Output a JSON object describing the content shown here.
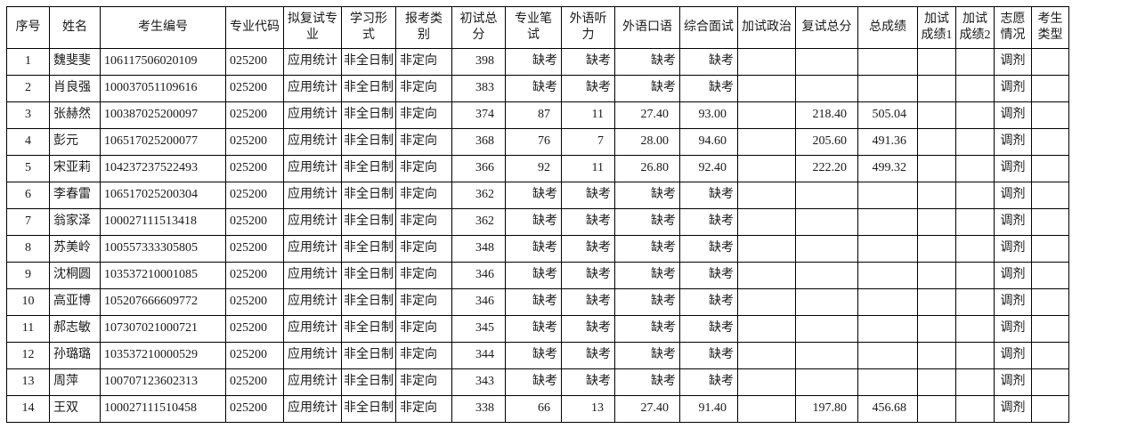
{
  "table": {
    "headers": [
      "序号",
      "姓名",
      "考生编号",
      "专业代码",
      "拟复试专\n业",
      "学习形\n式",
      "报考类\n别",
      "初试总\n分",
      "专业笔\n试",
      "外语听\n力",
      "外语口语",
      "综合面试",
      "加试政治",
      "复试总分",
      "总成绩",
      "加试\n成绩1",
      "加试\n成绩2",
      "志愿\n情况",
      "考生\n类型"
    ],
    "rows": [
      [
        "1",
        "魏斐斐",
        "106117506020109",
        "025200",
        "应用统计",
        "非全日制",
        "非定向",
        "398",
        "缺考",
        "缺考",
        "缺考",
        "缺考",
        "",
        "",
        "",
        "",
        "",
        "调剂",
        ""
      ],
      [
        "2",
        "肖良强",
        "100037051109616",
        "025200",
        "应用统计",
        "非全日制",
        "非定向",
        "383",
        "缺考",
        "缺考",
        "缺考",
        "缺考",
        "",
        "",
        "",
        "",
        "",
        "调剂",
        ""
      ],
      [
        "3",
        "张赫然",
        "100387025200097",
        "025200",
        "应用统计",
        "非全日制",
        "非定向",
        "374",
        "87",
        "11",
        "27.40",
        "93.00",
        "",
        "218.40",
        "505.04",
        "",
        "",
        "调剂",
        ""
      ],
      [
        "4",
        "彭元",
        "106517025200077",
        "025200",
        "应用统计",
        "非全日制",
        "非定向",
        "368",
        "76",
        "7",
        "28.00",
        "94.60",
        "",
        "205.60",
        "491.36",
        "",
        "",
        "调剂",
        ""
      ],
      [
        "5",
        "宋亚莉",
        "104237237522493",
        "025200",
        "应用统计",
        "非全日制",
        "非定向",
        "366",
        "92",
        "11",
        "26.80",
        "92.40",
        "",
        "222.20",
        "499.32",
        "",
        "",
        "调剂",
        ""
      ],
      [
        "6",
        "李春雷",
        "106517025200304",
        "025200",
        "应用统计",
        "非全日制",
        "非定向",
        "362",
        "缺考",
        "缺考",
        "缺考",
        "缺考",
        "",
        "",
        "",
        "",
        "",
        "调剂",
        ""
      ],
      [
        "7",
        "翁家泽",
        "100027111513418",
        "025200",
        "应用统计",
        "非全日制",
        "非定向",
        "362",
        "缺考",
        "缺考",
        "缺考",
        "缺考",
        "",
        "",
        "",
        "",
        "",
        "调剂",
        ""
      ],
      [
        "8",
        "苏美岭",
        "100557333305805",
        "025200",
        "应用统计",
        "非全日制",
        "非定向",
        "348",
        "缺考",
        "缺考",
        "缺考",
        "缺考",
        "",
        "",
        "",
        "",
        "",
        "调剂",
        ""
      ],
      [
        "9",
        "沈桐圆",
        "103537210001085",
        "025200",
        "应用统计",
        "非全日制",
        "非定向",
        "346",
        "缺考",
        "缺考",
        "缺考",
        "缺考",
        "",
        "",
        "",
        "",
        "",
        "调剂",
        ""
      ],
      [
        "10",
        "高亚博",
        "105207666609772",
        "025200",
        "应用统计",
        "非全日制",
        "非定向",
        "346",
        "缺考",
        "缺考",
        "缺考",
        "缺考",
        "",
        "",
        "",
        "",
        "",
        "调剂",
        ""
      ],
      [
        "11",
        "郝志敏",
        "107307021000721",
        "025200",
        "应用统计",
        "非全日制",
        "非定向",
        "345",
        "缺考",
        "缺考",
        "缺考",
        "缺考",
        "",
        "",
        "",
        "",
        "",
        "调剂",
        ""
      ],
      [
        "12",
        "孙璐璐",
        "103537210000529",
        "025200",
        "应用统计",
        "非全日制",
        "非定向",
        "344",
        "缺考",
        "缺考",
        "缺考",
        "缺考",
        "",
        "",
        "",
        "",
        "",
        "调剂",
        ""
      ],
      [
        "13",
        "周萍",
        "100707123602313",
        "025200",
        "应用统计",
        "非全日制",
        "非定向",
        "343",
        "缺考",
        "缺考",
        "缺考",
        "缺考",
        "",
        "",
        "",
        "",
        "",
        "调剂",
        ""
      ],
      [
        "14",
        "王双",
        "100027111510458",
        "025200",
        "应用统计",
        "非全日制",
        "非定向",
        "338",
        "66",
        "13",
        "27.40",
        "91.40",
        "",
        "197.80",
        "456.68",
        "",
        "",
        "调剂",
        ""
      ]
    ]
  },
  "colors": {
    "border": "#000000",
    "text": "#1a1a1a",
    "background": "#ffffff"
  }
}
